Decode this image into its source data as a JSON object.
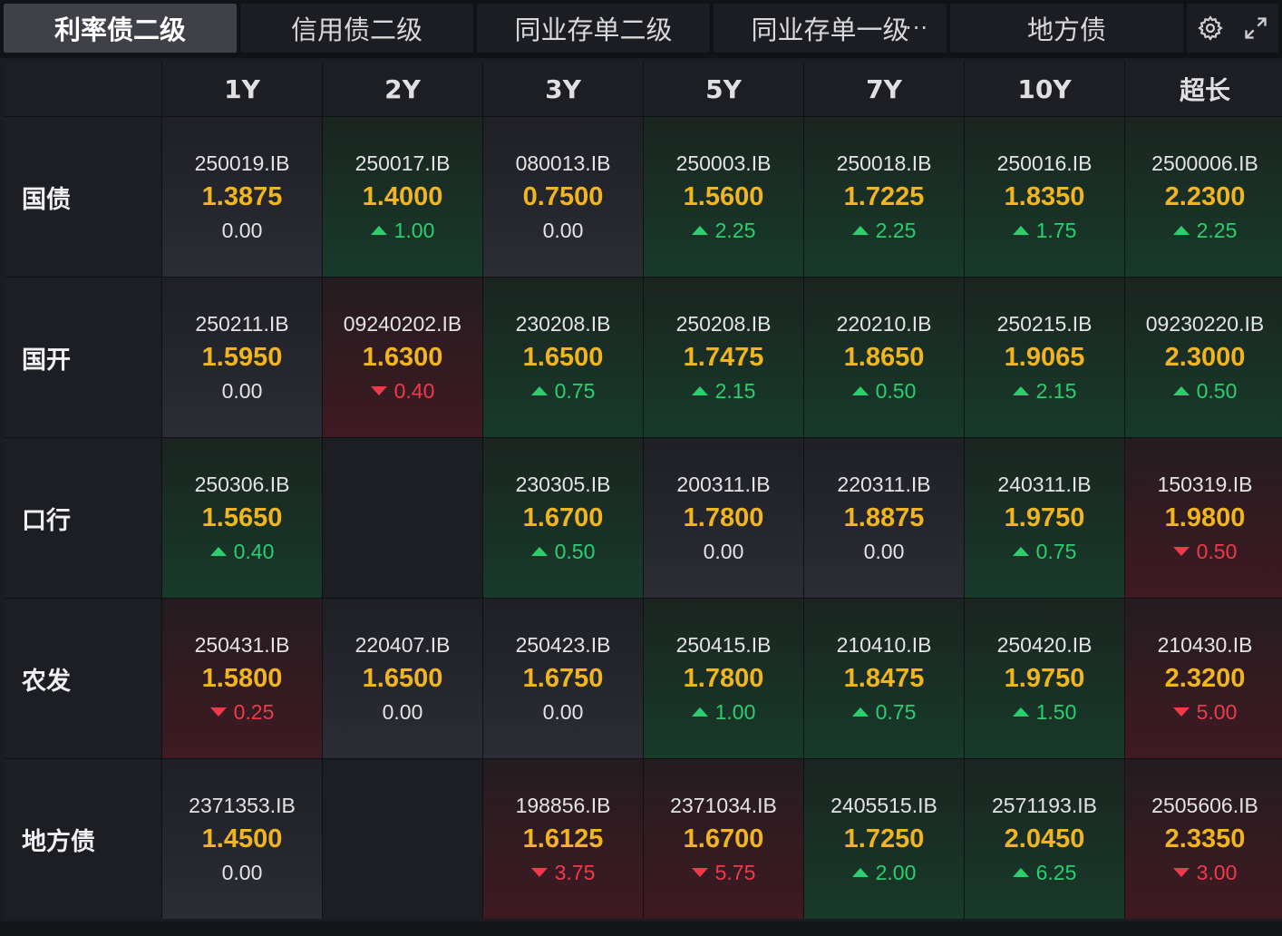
{
  "tabs": [
    {
      "label": "利率债二级",
      "active": true
    },
    {
      "label": "信用债二级",
      "active": false
    },
    {
      "label": "同业存单二级",
      "active": false
    },
    {
      "label": "同业存单一级",
      "active": false,
      "more": "···"
    },
    {
      "label": "地方债",
      "active": false
    }
  ],
  "tools": {
    "settings_icon": "gear-icon",
    "expand_icon": "expand-icon"
  },
  "colors": {
    "up": "#2ccf6e",
    "down": "#f03a4a",
    "yield": "#f0b51f",
    "active_tab": "#3f4048"
  },
  "columns": [
    "1Y",
    "2Y",
    "3Y",
    "5Y",
    "7Y",
    "10Y",
    "超长"
  ],
  "rows": [
    {
      "label": "国债",
      "cells": [
        {
          "code": "250019.IB",
          "yield": "1.3875",
          "change": "0.00",
          "dir": "neutral"
        },
        {
          "code": "250017.IB",
          "yield": "1.4000",
          "change": "1.00",
          "dir": "up"
        },
        {
          "code": "080013.IB",
          "yield": "0.7500",
          "change": "0.00",
          "dir": "neutral"
        },
        {
          "code": "250003.IB",
          "yield": "1.5600",
          "change": "2.25",
          "dir": "up"
        },
        {
          "code": "250018.IB",
          "yield": "1.7225",
          "change": "2.25",
          "dir": "up"
        },
        {
          "code": "250016.IB",
          "yield": "1.8350",
          "change": "1.75",
          "dir": "up"
        },
        {
          "code": "2500006.IB",
          "yield": "2.2300",
          "change": "2.25",
          "dir": "up"
        }
      ]
    },
    {
      "label": "国开",
      "cells": [
        {
          "code": "250211.IB",
          "yield": "1.5950",
          "change": "0.00",
          "dir": "neutral"
        },
        {
          "code": "09240202.IB",
          "yield": "1.6300",
          "change": "0.40",
          "dir": "down"
        },
        {
          "code": "230208.IB",
          "yield": "1.6500",
          "change": "0.75",
          "dir": "up"
        },
        {
          "code": "250208.IB",
          "yield": "1.7475",
          "change": "2.15",
          "dir": "up"
        },
        {
          "code": "220210.IB",
          "yield": "1.8650",
          "change": "0.50",
          "dir": "up"
        },
        {
          "code": "250215.IB",
          "yield": "1.9065",
          "change": "2.15",
          "dir": "up"
        },
        {
          "code": "09230220.IB",
          "yield": "2.3000",
          "change": "0.50",
          "dir": "up"
        }
      ]
    },
    {
      "label": "口行",
      "cells": [
        {
          "code": "250306.IB",
          "yield": "1.5650",
          "change": "0.40",
          "dir": "up"
        },
        null,
        {
          "code": "230305.IB",
          "yield": "1.6700",
          "change": "0.50",
          "dir": "up"
        },
        {
          "code": "200311.IB",
          "yield": "1.7800",
          "change": "0.00",
          "dir": "neutral"
        },
        {
          "code": "220311.IB",
          "yield": "1.8875",
          "change": "0.00",
          "dir": "neutral"
        },
        {
          "code": "240311.IB",
          "yield": "1.9750",
          "change": "0.75",
          "dir": "up"
        },
        {
          "code": "150319.IB",
          "yield": "1.9800",
          "change": "0.50",
          "dir": "down"
        }
      ]
    },
    {
      "label": "农发",
      "cells": [
        {
          "code": "250431.IB",
          "yield": "1.5800",
          "change": "0.25",
          "dir": "down"
        },
        {
          "code": "220407.IB",
          "yield": "1.6500",
          "change": "0.00",
          "dir": "neutral"
        },
        {
          "code": "250423.IB",
          "yield": "1.6750",
          "change": "0.00",
          "dir": "neutral"
        },
        {
          "code": "250415.IB",
          "yield": "1.7800",
          "change": "1.00",
          "dir": "up"
        },
        {
          "code": "210410.IB",
          "yield": "1.8475",
          "change": "0.75",
          "dir": "up"
        },
        {
          "code": "250420.IB",
          "yield": "1.9750",
          "change": "1.50",
          "dir": "up"
        },
        {
          "code": "210430.IB",
          "yield": "2.3200",
          "change": "5.00",
          "dir": "down"
        }
      ]
    },
    {
      "label": "地方债",
      "cells": [
        {
          "code": "2371353.IB",
          "yield": "1.4500",
          "change": "0.00",
          "dir": "neutral"
        },
        null,
        {
          "code": "198856.IB",
          "yield": "1.6125",
          "change": "3.75",
          "dir": "down"
        },
        {
          "code": "2371034.IB",
          "yield": "1.6700",
          "change": "5.75",
          "dir": "down"
        },
        {
          "code": "2405515.IB",
          "yield": "1.7250",
          "change": "2.00",
          "dir": "up"
        },
        {
          "code": "2571193.IB",
          "yield": "2.0450",
          "change": "6.25",
          "dir": "up"
        },
        {
          "code": "2505606.IB",
          "yield": "2.3350",
          "change": "3.00",
          "dir": "down"
        }
      ]
    }
  ]
}
